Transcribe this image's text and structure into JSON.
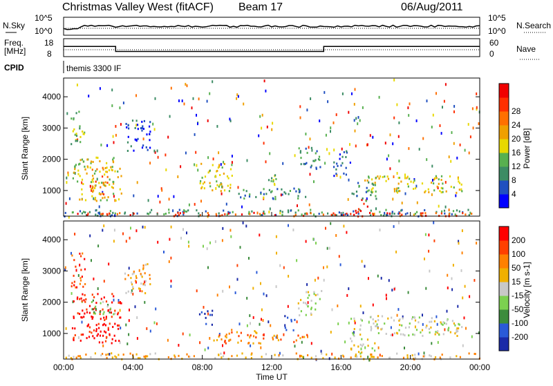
{
  "header": {
    "title": "Christmas Valley West (fitACF)",
    "beam": "Beam 17",
    "date": "06/Aug/2011"
  },
  "labels": {
    "nsky": "N.Sky",
    "nsearch": "N.Search",
    "freq_line1": "Freq.",
    "freq_line2": "[MHz]",
    "nave": "Nave",
    "cpid": "CPID",
    "cpid_value": "themis 3300 IF"
  },
  "noise_panel": {
    "left_ticks": [
      "10^5",
      "10^0"
    ],
    "right_ticks": [
      "10^5",
      "10^0"
    ]
  },
  "freq_panel": {
    "left_ticks": [
      "18",
      "8"
    ],
    "right_ticks": [
      "60",
      "0"
    ],
    "freq_mhz_segments": [
      {
        "start_hour": 0,
        "end_hour": 3,
        "value": 14.5
      },
      {
        "start_hour": 3,
        "end_hour": 15,
        "value": 10.5
      },
      {
        "start_hour": 15,
        "end_hour": 24,
        "value": 14.5
      }
    ]
  },
  "chart_data": [
    {
      "type": "heatmap",
      "panel": "power",
      "ylabel": "Slant Range [km]",
      "y_ticks": [
        "1000",
        "2000",
        "3000",
        "4000"
      ],
      "ylim": [
        180,
        4600
      ],
      "xlim": [
        0,
        24
      ],
      "colorbar": {
        "label": "Power [dB]",
        "ticks": [
          "4",
          "8",
          "12",
          "16",
          "20",
          "24",
          "28"
        ],
        "colors": [
          "#0000ff",
          "#2050c0",
          "#3c8c64",
          "#58b050",
          "#e8d800",
          "#f0a000",
          "#ff7000",
          "#ff3000",
          "#f00000"
        ]
      },
      "regions": [
        {
          "t0": 0.0,
          "t1": 24.0,
          "r0": 200,
          "r1": 420,
          "level": 2
        },
        {
          "t0": 0.5,
          "t1": 3.3,
          "r0": 700,
          "r1": 2100,
          "level": 4
        },
        {
          "t0": 0.4,
          "t1": 1.2,
          "r0": 2500,
          "r1": 3600,
          "level": 3
        },
        {
          "t0": 1.5,
          "t1": 2.5,
          "r0": 900,
          "r1": 1800,
          "level": 6
        },
        {
          "t0": 3.5,
          "t1": 5.0,
          "r0": 2300,
          "r1": 3300,
          "level": 1
        },
        {
          "t0": 7.8,
          "t1": 9.8,
          "r0": 1000,
          "r1": 1900,
          "level": 4
        },
        {
          "t0": 10.0,
          "t1": 14.0,
          "r0": 750,
          "r1": 1100,
          "level": 2
        },
        {
          "t0": 11.5,
          "t1": 12.3,
          "r0": 1000,
          "r1": 1600,
          "level": 3
        },
        {
          "t0": 13.5,
          "t1": 14.9,
          "r0": 1700,
          "r1": 2400,
          "level": 2
        },
        {
          "t0": 15.5,
          "t1": 16.5,
          "r0": 1500,
          "r1": 2300,
          "level": 1
        },
        {
          "t0": 16.8,
          "t1": 17.6,
          "r0": 350,
          "r1": 750,
          "level": 8
        },
        {
          "t0": 17.3,
          "t1": 23.0,
          "r0": 950,
          "r1": 1500,
          "level": 4
        },
        {
          "t0": 16.5,
          "t1": 18.0,
          "r0": 700,
          "r1": 1300,
          "level": 2
        },
        {
          "t0": 0.0,
          "t1": 24.0,
          "r0": 200,
          "r1": 320,
          "level": 7
        }
      ]
    },
    {
      "type": "heatmap",
      "panel": "velocity",
      "ylabel": "Slant Range [km]",
      "xlabel": "Time UT",
      "x_ticks": [
        "00:00",
        "04:00",
        "08:00",
        "12:00",
        "16:00",
        "20:00",
        "00:00"
      ],
      "y_ticks": [
        "1000",
        "2000",
        "3000",
        "4000"
      ],
      "ylim": [
        180,
        4600
      ],
      "xlim": [
        0,
        24
      ],
      "colorbar": {
        "label": "Velocity [m s-1]",
        "ticks": [
          "200",
          "100",
          "50",
          "15",
          "-15",
          "-50",
          "-100",
          "-200"
        ],
        "colors": [
          "#1a2aa8",
          "#2a5ad8",
          "#3c8c3c",
          "#7cd050",
          "#c8c8c8",
          "#f0b000",
          "#ff8000",
          "#ff4000",
          "#ff0000"
        ]
      },
      "regions": [
        {
          "t0": 0.4,
          "t1": 3.3,
          "r0": 700,
          "r1": 2300,
          "level": 8
        },
        {
          "t0": 1.5,
          "t1": 3.0,
          "r0": 1600,
          "r1": 2100,
          "level": 3
        },
        {
          "t0": 0.4,
          "t1": 1.2,
          "r0": 2500,
          "r1": 3600,
          "level": 7
        },
        {
          "t0": 3.5,
          "t1": 5.0,
          "r0": 2300,
          "r1": 3300,
          "level": 5
        },
        {
          "t0": 7.8,
          "t1": 8.6,
          "r0": 1300,
          "r1": 1800,
          "level": 0
        },
        {
          "t0": 8.6,
          "t1": 11.5,
          "r0": 700,
          "r1": 1200,
          "level": 6
        },
        {
          "t0": 12.0,
          "t1": 14.0,
          "r0": 700,
          "r1": 1000,
          "level": 6
        },
        {
          "t0": 12.7,
          "t1": 13.3,
          "r0": 1100,
          "r1": 1600,
          "level": 1
        },
        {
          "t0": 13.5,
          "t1": 14.9,
          "r0": 1600,
          "r1": 2400,
          "level": 4
        },
        {
          "t0": 16.5,
          "t1": 23.0,
          "r0": 950,
          "r1": 1600,
          "level": 4
        },
        {
          "t0": 16.5,
          "t1": 18.0,
          "r0": 250,
          "r1": 900,
          "level": 4
        },
        {
          "t0": 0.0,
          "t1": 24.0,
          "r0": 200,
          "r1": 400,
          "level": 5
        }
      ]
    }
  ]
}
